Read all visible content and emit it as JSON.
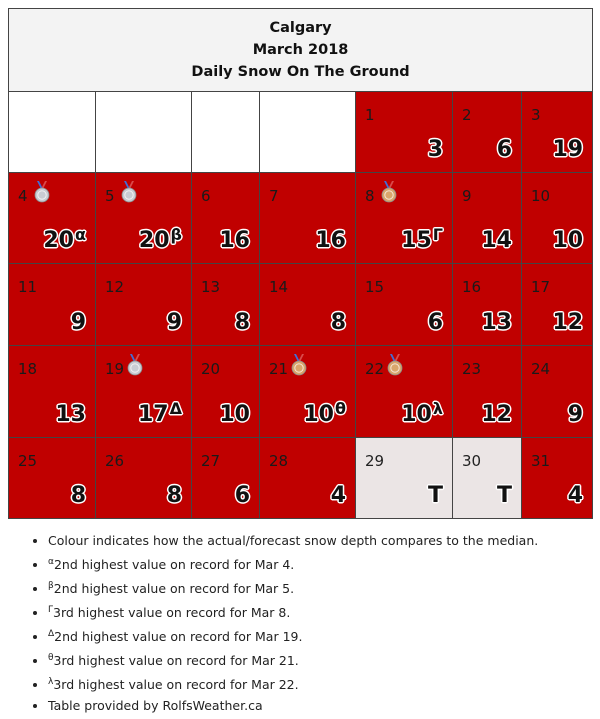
{
  "header": {
    "city": "Calgary",
    "month": "March 2018",
    "title": "Daily Snow On The Ground"
  },
  "weeks": [
    [
      {
        "blank": true
      },
      {
        "blank": true
      },
      {
        "blank": true
      },
      {
        "blank": true
      },
      {
        "day": "1",
        "value": "3",
        "color": "red"
      },
      {
        "day": "2",
        "value": "6",
        "color": "red"
      },
      {
        "day": "3",
        "value": "19",
        "color": "red"
      }
    ],
    [
      {
        "day": "4",
        "value": "20",
        "sup": "α",
        "medal": "silver",
        "color": "red"
      },
      {
        "day": "5",
        "value": "20",
        "sup": "β",
        "medal": "silver",
        "color": "red"
      },
      {
        "day": "6",
        "value": "16",
        "color": "red"
      },
      {
        "day": "7",
        "value": "16",
        "color": "red"
      },
      {
        "day": "8",
        "value": "15",
        "sup": "Γ",
        "medal": "bronze",
        "color": "red"
      },
      {
        "day": "9",
        "value": "14",
        "color": "red"
      },
      {
        "day": "10",
        "value": "10",
        "color": "red"
      }
    ],
    [
      {
        "day": "11",
        "value": "9",
        "color": "red"
      },
      {
        "day": "12",
        "value": "9",
        "color": "red"
      },
      {
        "day": "13",
        "value": "8",
        "color": "red"
      },
      {
        "day": "14",
        "value": "8",
        "color": "red"
      },
      {
        "day": "15",
        "value": "6",
        "color": "red"
      },
      {
        "day": "16",
        "value": "13",
        "color": "red"
      },
      {
        "day": "17",
        "value": "12",
        "color": "red"
      }
    ],
    [
      {
        "day": "18",
        "value": "13",
        "color": "red"
      },
      {
        "day": "19",
        "value": "17",
        "sup": "Δ",
        "medal": "silver",
        "color": "red"
      },
      {
        "day": "20",
        "value": "10",
        "color": "red"
      },
      {
        "day": "21",
        "value": "10",
        "sup": "θ",
        "medal": "bronze",
        "color": "red"
      },
      {
        "day": "22",
        "value": "10",
        "sup": "λ",
        "medal": "bronze",
        "color": "red"
      },
      {
        "day": "23",
        "value": "12",
        "color": "red"
      },
      {
        "day": "24",
        "value": "9",
        "color": "red"
      }
    ],
    [
      {
        "day": "25",
        "value": "8",
        "color": "red"
      },
      {
        "day": "26",
        "value": "8",
        "color": "red"
      },
      {
        "day": "27",
        "value": "6",
        "color": "red"
      },
      {
        "day": "28",
        "value": "4",
        "color": "red"
      },
      {
        "day": "29",
        "value": "T",
        "color": "grey"
      },
      {
        "day": "30",
        "value": "T",
        "color": "grey"
      },
      {
        "day": "31",
        "value": "4",
        "color": "red"
      }
    ]
  ],
  "notes": [
    {
      "sup": "",
      "text": "Colour indicates how the actual/forecast snow depth compares to the median."
    },
    {
      "sup": "α",
      "text": "2nd highest value on record for Mar 4."
    },
    {
      "sup": "β",
      "text": "2nd highest value on record for Mar 5."
    },
    {
      "sup": "Γ",
      "text": "3rd highest value on record for Mar 8."
    },
    {
      "sup": "Δ",
      "text": "2nd highest value on record for Mar 19."
    },
    {
      "sup": "θ",
      "text": "3rd highest value on record for Mar 21."
    },
    {
      "sup": "λ",
      "text": "3rd highest value on record for Mar 22."
    },
    {
      "sup": "",
      "text": "Table provided by RolfsWeather.ca"
    }
  ],
  "colors": {
    "red": "#c00000",
    "grey": "#ebe5e5",
    "blank": "#ffffff",
    "silver": "#c9ccd3",
    "bronze": "#d9a66b"
  },
  "medal_icons": {
    "silver": "silver-medal-icon",
    "bronze": "bronze-medal-icon"
  }
}
